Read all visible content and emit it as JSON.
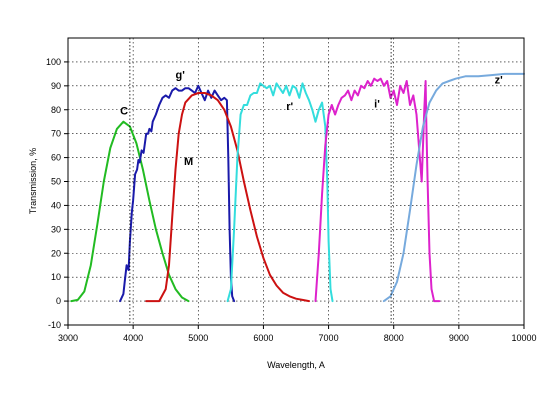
{
  "chart_data": {
    "type": "line",
    "title": "",
    "xlabel": "Wavelength, A",
    "ylabel": "Transmission, %",
    "xlim": [
      3000,
      10000
    ],
    "ylim": [
      -10,
      110
    ],
    "xticks": [
      3000,
      4000,
      5000,
      6000,
      7000,
      8000,
      9000,
      10000
    ],
    "yticks": [
      -10,
      0,
      10,
      20,
      30,
      40,
      50,
      60,
      70,
      80,
      90,
      100
    ],
    "grid": true,
    "legend": "none",
    "series": [
      {
        "name": "C",
        "color": "#22bb22",
        "label_at": [
          3800,
          78
        ],
        "points": [
          [
            3050,
            0
          ],
          [
            3150,
            0.5
          ],
          [
            3250,
            4
          ],
          [
            3350,
            15
          ],
          [
            3450,
            32
          ],
          [
            3550,
            50
          ],
          [
            3650,
            64
          ],
          [
            3750,
            72
          ],
          [
            3850,
            75
          ],
          [
            3950,
            73
          ],
          [
            4050,
            66
          ],
          [
            4150,
            55
          ],
          [
            4250,
            42
          ],
          [
            4350,
            30
          ],
          [
            4450,
            20
          ],
          [
            4550,
            11
          ],
          [
            4650,
            5
          ],
          [
            4750,
            1.5
          ],
          [
            4850,
            0
          ]
        ]
      },
      {
        "name": "g'",
        "color": "#1a1aaa",
        "label_at": [
          4650,
          93
        ],
        "points": [
          [
            3800,
            0
          ],
          [
            3850,
            3
          ],
          [
            3870,
            8
          ],
          [
            3900,
            15
          ],
          [
            3930,
            13
          ],
          [
            3950,
            25
          ],
          [
            3980,
            37
          ],
          [
            4000,
            42
          ],
          [
            4030,
            53
          ],
          [
            4060,
            55
          ],
          [
            4080,
            59
          ],
          [
            4100,
            58
          ],
          [
            4130,
            63
          ],
          [
            4160,
            62
          ],
          [
            4200,
            70
          ],
          [
            4230,
            70
          ],
          [
            4250,
            72
          ],
          [
            4280,
            71
          ],
          [
            4300,
            75
          ],
          [
            4350,
            78
          ],
          [
            4400,
            82
          ],
          [
            4450,
            85
          ],
          [
            4500,
            86
          ],
          [
            4550,
            85
          ],
          [
            4600,
            88
          ],
          [
            4650,
            89
          ],
          [
            4700,
            88
          ],
          [
            4750,
            88
          ],
          [
            4800,
            89
          ],
          [
            4850,
            89
          ],
          [
            4900,
            88
          ],
          [
            4950,
            87
          ],
          [
            5000,
            90
          ],
          [
            5050,
            87
          ],
          [
            5100,
            84
          ],
          [
            5150,
            88
          ],
          [
            5200,
            85
          ],
          [
            5250,
            88
          ],
          [
            5300,
            86
          ],
          [
            5350,
            84
          ],
          [
            5400,
            85
          ],
          [
            5440,
            84
          ],
          [
            5460,
            60
          ],
          [
            5480,
            30
          ],
          [
            5500,
            10
          ],
          [
            5520,
            2
          ],
          [
            5550,
            0
          ]
        ]
      },
      {
        "name": "M",
        "color": "#cc1111",
        "label_at": [
          4780,
          57
        ],
        "points": [
          [
            4200,
            0
          ],
          [
            4300,
            0
          ],
          [
            4400,
            0
          ],
          [
            4500,
            5
          ],
          [
            4550,
            15
          ],
          [
            4600,
            35
          ],
          [
            4650,
            55
          ],
          [
            4700,
            70
          ],
          [
            4750,
            78
          ],
          [
            4800,
            83
          ],
          [
            4900,
            86
          ],
          [
            5000,
            87
          ],
          [
            5100,
            87
          ],
          [
            5200,
            86
          ],
          [
            5300,
            84
          ],
          [
            5400,
            80
          ],
          [
            5500,
            73
          ],
          [
            5600,
            63
          ],
          [
            5700,
            50
          ],
          [
            5800,
            38
          ],
          [
            5900,
            27
          ],
          [
            6000,
            18
          ],
          [
            6100,
            11
          ],
          [
            6200,
            6.5
          ],
          [
            6300,
            3.5
          ],
          [
            6400,
            2
          ],
          [
            6500,
            1
          ],
          [
            6600,
            0.5
          ],
          [
            6700,
            0
          ]
        ]
      },
      {
        "name": "r'",
        "color": "#33dddd",
        "label_at": [
          6350,
          80
        ],
        "points": [
          [
            5450,
            0
          ],
          [
            5500,
            5
          ],
          [
            5550,
            30
          ],
          [
            5600,
            60
          ],
          [
            5650,
            78
          ],
          [
            5700,
            82
          ],
          [
            5750,
            82
          ],
          [
            5800,
            86
          ],
          [
            5850,
            87
          ],
          [
            5900,
            87
          ],
          [
            5950,
            91
          ],
          [
            6000,
            90
          ],
          [
            6050,
            89
          ],
          [
            6100,
            90
          ],
          [
            6150,
            86
          ],
          [
            6200,
            91
          ],
          [
            6250,
            89
          ],
          [
            6300,
            87
          ],
          [
            6350,
            90
          ],
          [
            6400,
            86
          ],
          [
            6450,
            90
          ],
          [
            6500,
            89
          ],
          [
            6550,
            85
          ],
          [
            6600,
            91
          ],
          [
            6650,
            87
          ],
          [
            6700,
            84
          ],
          [
            6750,
            80
          ],
          [
            6800,
            75
          ],
          [
            6850,
            80
          ],
          [
            6900,
            83
          ],
          [
            6950,
            73
          ],
          [
            6980,
            50
          ],
          [
            7000,
            25
          ],
          [
            7030,
            5
          ],
          [
            7060,
            0
          ]
        ]
      },
      {
        "name": "i'",
        "color": "#dd22cc",
        "label_at": [
          7700,
          81
        ],
        "points": [
          [
            6800,
            0
          ],
          [
            6850,
            20
          ],
          [
            6900,
            45
          ],
          [
            6950,
            65
          ],
          [
            7000,
            78
          ],
          [
            7050,
            82
          ],
          [
            7100,
            78
          ],
          [
            7150,
            82
          ],
          [
            7200,
            85
          ],
          [
            7250,
            86
          ],
          [
            7300,
            88
          ],
          [
            7350,
            84
          ],
          [
            7400,
            88
          ],
          [
            7450,
            86
          ],
          [
            7500,
            90
          ],
          [
            7550,
            89
          ],
          [
            7600,
            92
          ],
          [
            7650,
            90
          ],
          [
            7700,
            93
          ],
          [
            7750,
            92
          ],
          [
            7800,
            93
          ],
          [
            7850,
            90
          ],
          [
            7900,
            92
          ],
          [
            7950,
            85
          ],
          [
            8000,
            88
          ],
          [
            8050,
            82
          ],
          [
            8100,
            90
          ],
          [
            8150,
            87
          ],
          [
            8200,
            92
          ],
          [
            8250,
            82
          ],
          [
            8300,
            86
          ],
          [
            8350,
            78
          ],
          [
            8400,
            60
          ],
          [
            8430,
            50
          ],
          [
            8450,
            65
          ],
          [
            8470,
            80
          ],
          [
            8490,
            92
          ],
          [
            8500,
            75
          ],
          [
            8520,
            50
          ],
          [
            8550,
            20
          ],
          [
            8580,
            5
          ],
          [
            8620,
            0
          ],
          [
            8700,
            0
          ]
        ]
      },
      {
        "name": "z'",
        "color": "#77aadd",
        "label_at": [
          9550,
          91
        ],
        "points": [
          [
            7850,
            0
          ],
          [
            7950,
            2
          ],
          [
            8050,
            8
          ],
          [
            8150,
            20
          ],
          [
            8250,
            38
          ],
          [
            8350,
            57
          ],
          [
            8450,
            73
          ],
          [
            8550,
            83
          ],
          [
            8650,
            88
          ],
          [
            8750,
            91
          ],
          [
            8850,
            92
          ],
          [
            8950,
            93
          ],
          [
            9100,
            94
          ],
          [
            9300,
            94
          ],
          [
            9500,
            94.5
          ],
          [
            9700,
            95
          ],
          [
            9900,
            95
          ],
          [
            10000,
            95
          ]
        ]
      }
    ],
    "annotations": [
      {
        "text": "dotted vertical line",
        "x": 3950
      },
      {
        "text": "dotted vertical line",
        "x": 7960
      }
    ]
  }
}
